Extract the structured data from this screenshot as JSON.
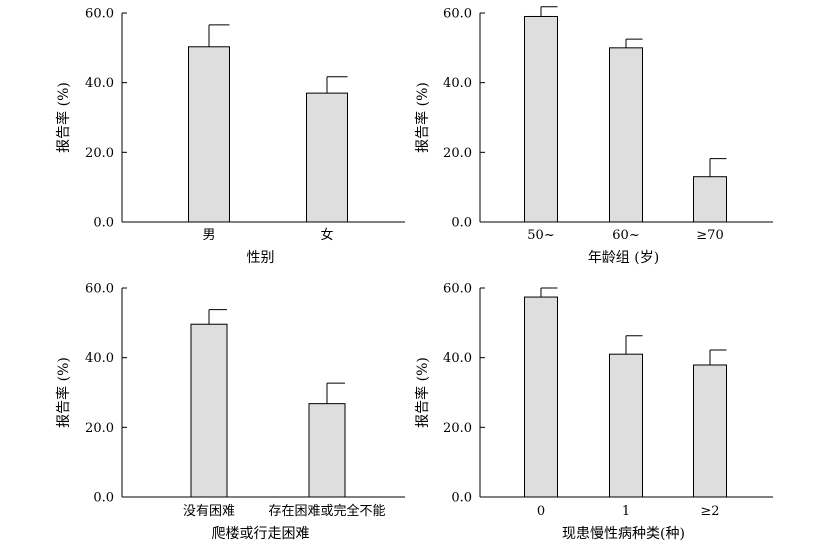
{
  "chart_data": [
    {
      "type": "bar",
      "categories": [
        "男",
        "女"
      ],
      "values": [
        50.3,
        37.0
      ],
      "errors": [
        6.3,
        4.7
      ],
      "xlabel": "性别",
      "ylabel": "报告率 (%)",
      "ylim": [
        0,
        60
      ],
      "yticks": [
        "0.0",
        "20.0",
        "40.0",
        "60.0"
      ],
      "bar_color": "#dedede",
      "grid": false
    },
    {
      "type": "bar",
      "categories": [
        "50~",
        "60~",
        "≥70"
      ],
      "values": [
        59.0,
        50.0,
        13.0
      ],
      "errors": [
        2.8,
        2.5,
        5.2
      ],
      "xlabel": "年龄组 (岁)",
      "ylabel": "报告率 (%)",
      "ylim": [
        0,
        60
      ],
      "yticks": [
        "0.0",
        "20.0",
        "40.0",
        "60.0"
      ],
      "bar_color": "#dedede",
      "grid": false
    },
    {
      "type": "bar",
      "categories": [
        "没有困难",
        "存在困难或完全不能"
      ],
      "values": [
        49.6,
        26.8
      ],
      "errors": [
        4.2,
        5.9
      ],
      "xlabel": "爬楼或行走困难",
      "ylabel": "报告率 (%)",
      "ylim": [
        0,
        60
      ],
      "yticks": [
        "0.0",
        "20.0",
        "40.0",
        "60.0"
      ],
      "bar_color": "#dedede",
      "grid": false
    },
    {
      "type": "bar",
      "categories": [
        "0",
        "1",
        "≥2"
      ],
      "values": [
        57.4,
        41.0,
        37.9
      ],
      "errors": [
        2.6,
        5.3,
        4.3
      ],
      "xlabel": "现患慢性病种类(种)",
      "ylabel": "报告率 (%)",
      "ylim": [
        0,
        60
      ],
      "yticks": [
        "0.0",
        "20.0",
        "40.0",
        "60.0"
      ],
      "bar_color": "#dedede",
      "grid": false
    }
  ]
}
